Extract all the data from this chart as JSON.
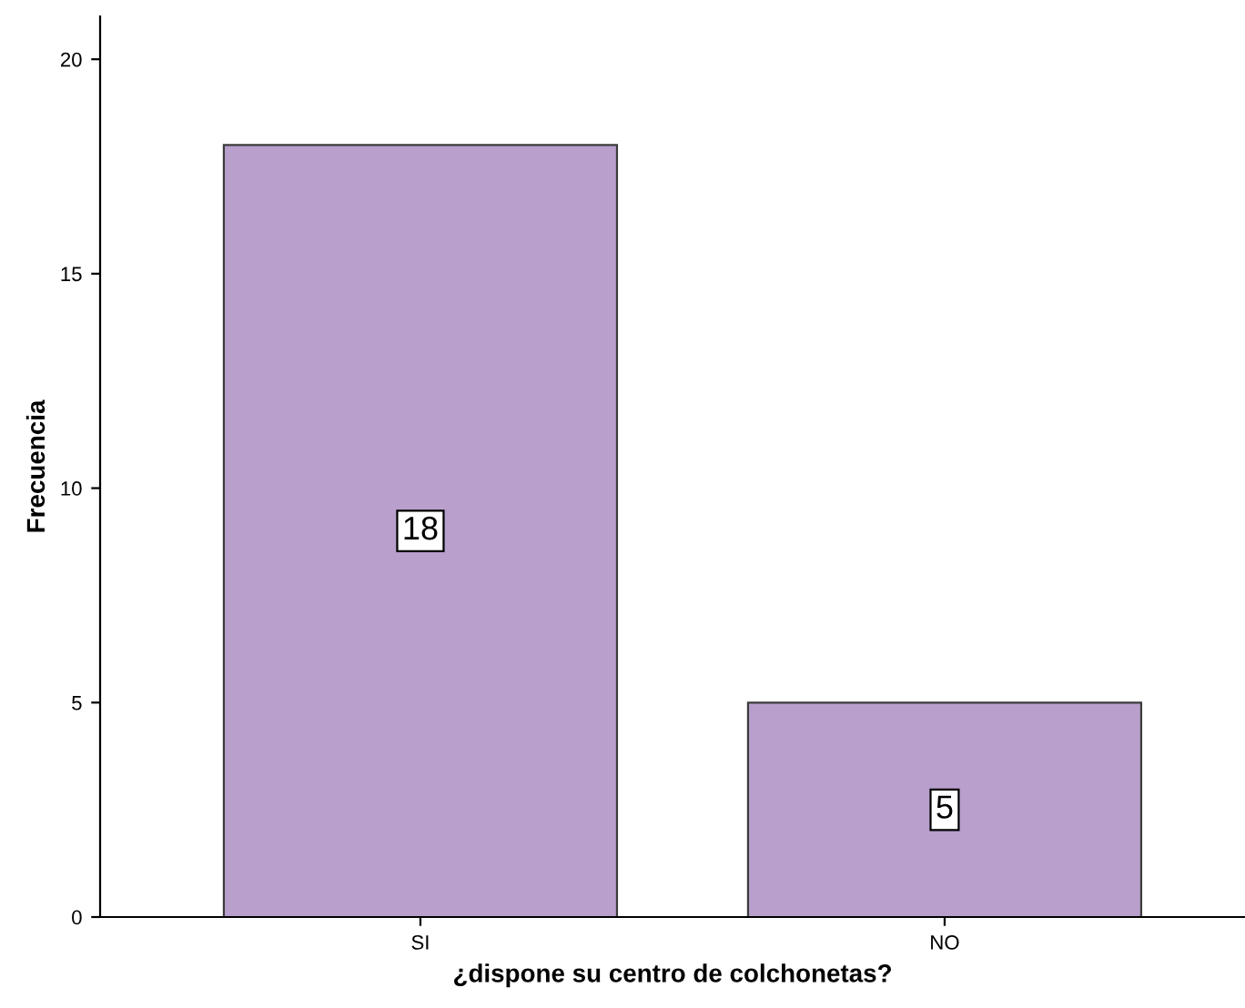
{
  "chart_data": {
    "type": "bar",
    "xlabel": "¿dispone su centro de colchonetas?",
    "ylabel": "Frecuencia",
    "categories": [
      "SI",
      "NO"
    ],
    "values": [
      18,
      5
    ],
    "color": "#b89fcc",
    "ylim": [
      0,
      21
    ],
    "yticks": [
      0,
      5,
      10,
      15,
      20
    ],
    "grid": false,
    "data_labels": true
  }
}
